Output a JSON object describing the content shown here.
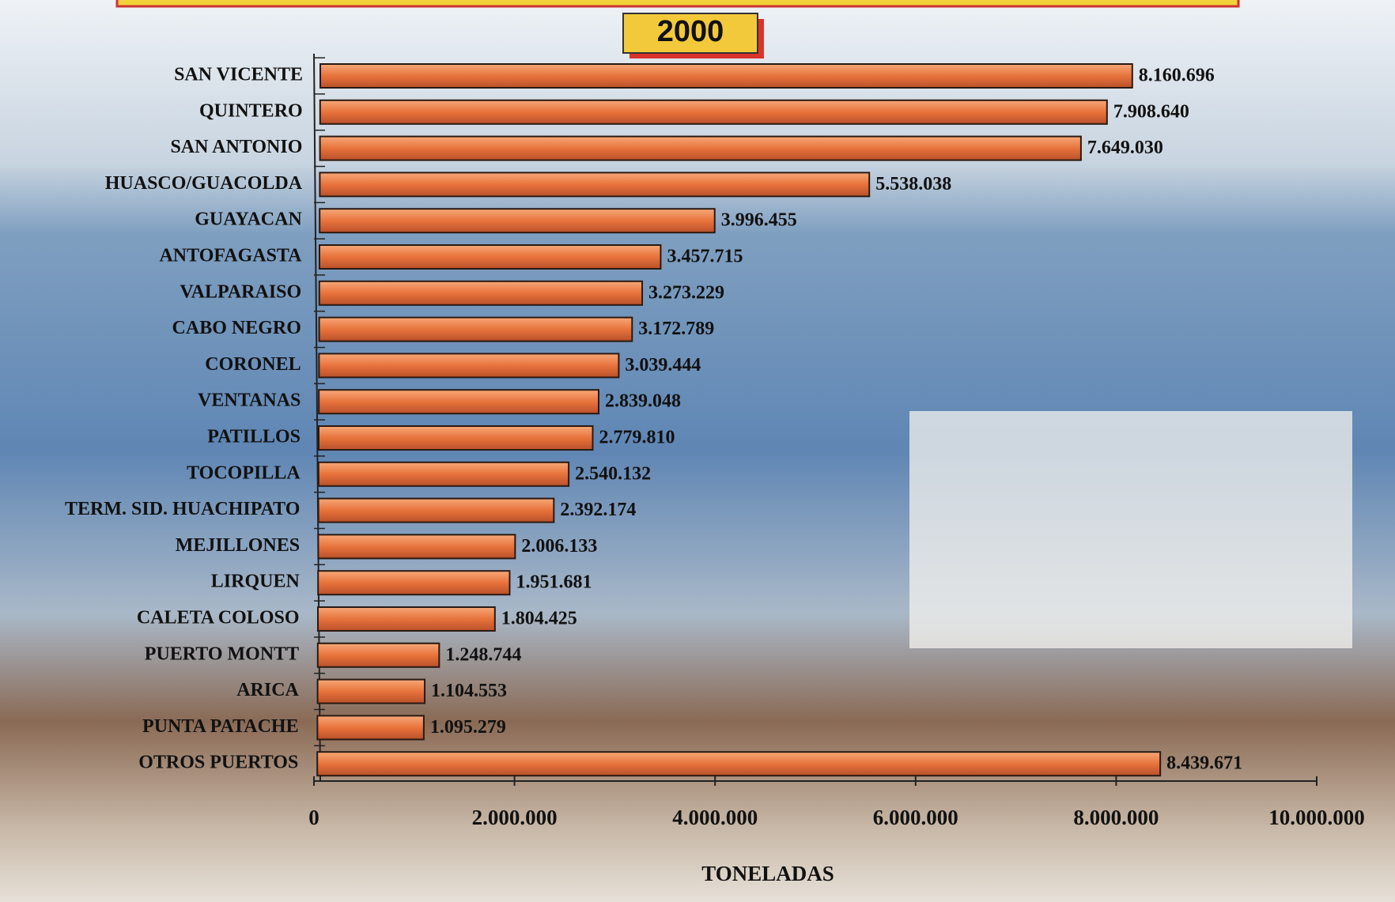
{
  "chart_data": {
    "type": "bar",
    "orientation": "horizontal",
    "title": "2000",
    "categories": [
      "SAN VICENTE",
      "QUINTERO",
      "SAN ANTONIO",
      "HUASCO/GUACOLDA",
      "GUAYACAN",
      "ANTOFAGASTA",
      "VALPARAISO",
      "CABO NEGRO",
      "CORONEL",
      "VENTANAS",
      "PATILLOS",
      "TOCOPILLA",
      "TERM. SID. HUACHIPATO",
      "MEJILLONES",
      "LIRQUEN",
      "CALETA COLOSO",
      "PUERTO MONTT",
      "ARICA",
      "PUNTA PATACHE",
      "OTROS PUERTOS"
    ],
    "values": [
      8160696,
      7908640,
      7649030,
      5538038,
      3996455,
      3457715,
      3273229,
      3172789,
      3039444,
      2839048,
      2779810,
      2540132,
      2392174,
      2006133,
      1951681,
      1804425,
      1248744,
      1104553,
      1095279,
      8439671
    ],
    "value_labels": [
      "8.160.696",
      "7.908.640",
      "7.649.030",
      "5.538.038",
      "3.996.455",
      "3.457.715",
      "3.273.229",
      "3.172.789",
      "3.039.444",
      "2.839.048",
      "2.779.810",
      "2.540.132",
      "2.392.174",
      "2.006.133",
      "1.951.681",
      "1.804.425",
      "1.248.744",
      "1.104.553",
      "1.095.279",
      "8.439.671"
    ],
    "color": "#e8733c",
    "xlim": [
      0,
      10000000
    ],
    "xticks": [
      0,
      {
        "value": 2000000,
        "label": "2.000.000"
      },
      {
        "value": 4000000,
        "label": "4.000.000"
      },
      {
        "value": 6000000,
        "label": "6.000.000"
      },
      {
        "value": 8000000,
        "label": "8.000.000"
      },
      {
        "value": 10000000,
        "label": "10.000.000"
      }
    ],
    "xlabel": "TONELADAS"
  }
}
